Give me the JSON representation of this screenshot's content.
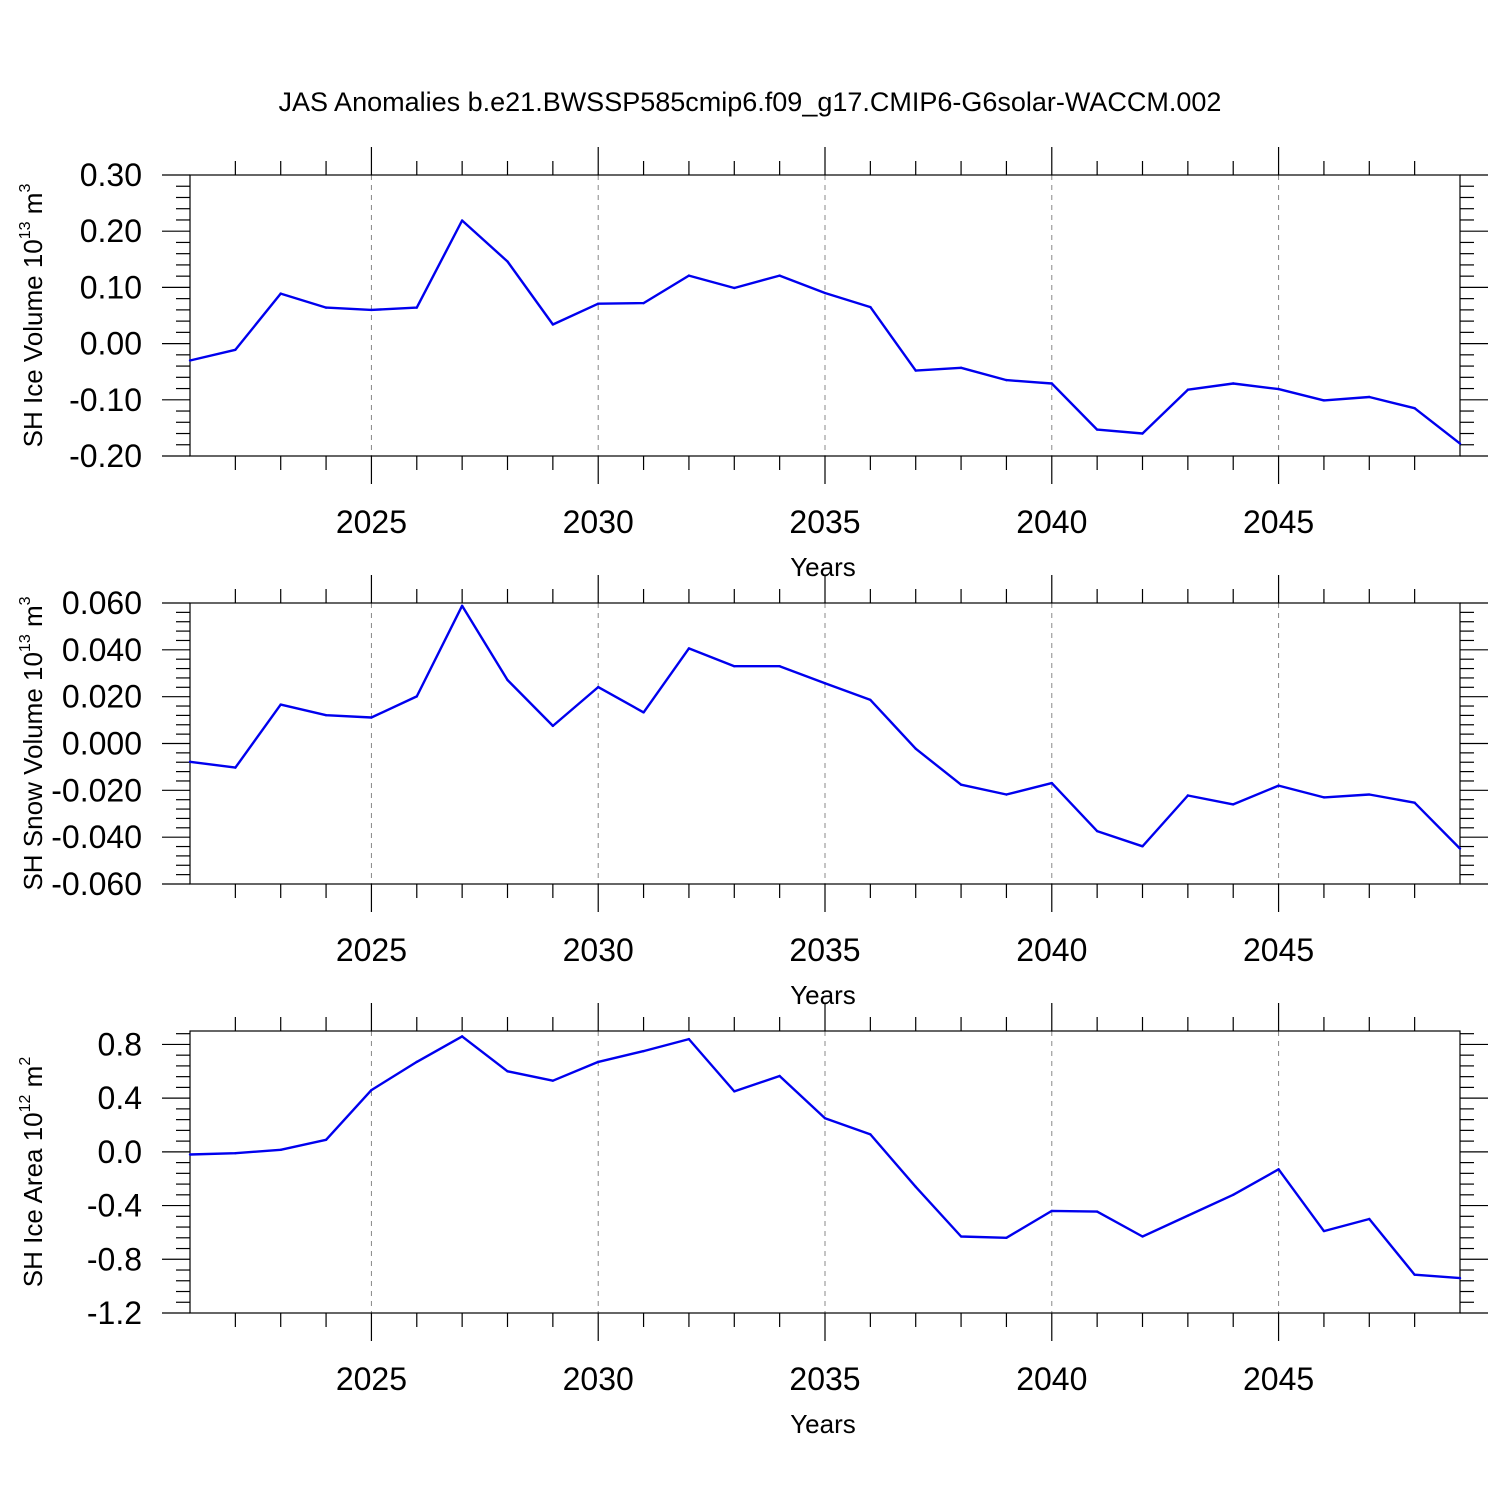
{
  "chart_data": [
    {
      "type": "line",
      "title": "JAS Anomalies b.e21.BWSSP585cmip6.f09_g17.CMIP6-G6solar-WACCM.002",
      "ylabel": {
        "main": "SH Ice Volume 10",
        "sup": "13",
        "unit": " m",
        "unit_sup": "3"
      },
      "xlabel": "Years",
      "xlim": [
        2021,
        2049
      ],
      "ylim": [
        -0.2,
        0.3
      ],
      "yticks": [
        -0.2,
        -0.1,
        0.0,
        0.1,
        0.2,
        0.3
      ],
      "yticklabels": [
        "-0.20",
        "-0.10",
        "0.00",
        "0.10",
        "0.20",
        "0.30"
      ],
      "xticks": [
        2025,
        2030,
        2035,
        2040,
        2045
      ],
      "xticklabels": [
        "2025",
        "2030",
        "2035",
        "2040",
        "2045"
      ],
      "grid": "vertical-dashed",
      "color": "#0000ee",
      "x": [
        2021,
        2022,
        2023,
        2024,
        2025,
        2026,
        2027,
        2028,
        2029,
        2030,
        2031,
        2032,
        2033,
        2034,
        2035,
        2036,
        2037,
        2038,
        2039,
        2040,
        2041,
        2042,
        2043,
        2044,
        2045,
        2046,
        2047,
        2048,
        2049
      ],
      "values": [
        -0.03,
        -0.011,
        0.089,
        0.064,
        0.06,
        0.064,
        0.219,
        0.146,
        0.034,
        0.071,
        0.072,
        0.121,
        0.099,
        0.121,
        0.09,
        0.065,
        -0.048,
        -0.043,
        -0.065,
        -0.071,
        -0.153,
        -0.16,
        -0.082,
        -0.071,
        -0.081,
        -0.101,
        -0.095,
        -0.115,
        -0.178
      ]
    },
    {
      "type": "line",
      "ylabel": {
        "main": "SH Snow Volume 10",
        "sup": "13",
        "unit": " m",
        "unit_sup": "3"
      },
      "xlabel": "Years",
      "xlim": [
        2021,
        2049
      ],
      "ylim": [
        -0.06,
        0.06
      ],
      "yticks": [
        -0.06,
        -0.04,
        -0.02,
        0.0,
        0.02,
        0.04,
        0.06
      ],
      "yticklabels": [
        "-0.060",
        "-0.040",
        "-0.020",
        "0.000",
        "0.020",
        "0.040",
        "0.060"
      ],
      "xticks": [
        2025,
        2030,
        2035,
        2040,
        2045
      ],
      "xticklabels": [
        "2025",
        "2030",
        "2035",
        "2040",
        "2045"
      ],
      "grid": "vertical-dashed",
      "color": "#0000ee",
      "x": [
        2021,
        2022,
        2023,
        2024,
        2025,
        2026,
        2027,
        2028,
        2029,
        2030,
        2031,
        2032,
        2033,
        2034,
        2035,
        2036,
        2037,
        2038,
        2039,
        2040,
        2041,
        2042,
        2043,
        2044,
        2045,
        2046,
        2047,
        2048,
        2049
      ],
      "values": [
        -0.0078,
        -0.0103,
        0.0166,
        0.0121,
        0.0111,
        0.0201,
        0.0588,
        0.0271,
        0.0075,
        0.0241,
        0.0133,
        0.0406,
        0.033,
        0.033,
        0.0257,
        0.0186,
        -0.0022,
        -0.0176,
        -0.0218,
        -0.0169,
        -0.0374,
        -0.0439,
        -0.0222,
        -0.026,
        -0.018,
        -0.023,
        -0.0218,
        -0.0253,
        -0.0449
      ]
    },
    {
      "type": "line",
      "ylabel": {
        "main": "SH Ice Area 10",
        "sup": "12",
        "unit": " m",
        "unit_sup": "2"
      },
      "xlabel": "Years",
      "xlim": [
        2021,
        2049
      ],
      "ylim": [
        -1.2,
        0.9
      ],
      "yticks": [
        -1.2,
        -0.8,
        -0.4,
        0.0,
        0.4,
        0.8
      ],
      "yticklabels": [
        "-1.2",
        "-0.8",
        "-0.4",
        "0.0",
        "0.4",
        "0.8"
      ],
      "xticks": [
        2025,
        2030,
        2035,
        2040,
        2045
      ],
      "xticklabels": [
        "2025",
        "2030",
        "2035",
        "2040",
        "2045"
      ],
      "grid": "vertical-dashed",
      "color": "#0000ee",
      "x": [
        2021,
        2022,
        2023,
        2024,
        2025,
        2026,
        2027,
        2028,
        2029,
        2030,
        2031,
        2032,
        2033,
        2034,
        2035,
        2036,
        2037,
        2038,
        2039,
        2040,
        2041,
        2042,
        2043,
        2044,
        2045,
        2046,
        2047,
        2048,
        2049
      ],
      "values": [
        -0.02,
        -0.01,
        0.015,
        0.09,
        0.46,
        0.67,
        0.86,
        0.6,
        0.53,
        0.67,
        0.75,
        0.84,
        0.45,
        0.565,
        0.25,
        0.13,
        -0.26,
        -0.63,
        -0.64,
        -0.44,
        -0.445,
        -0.63,
        -0.475,
        -0.32,
        -0.13,
        -0.59,
        -0.5,
        -0.915,
        -0.94
      ]
    }
  ]
}
